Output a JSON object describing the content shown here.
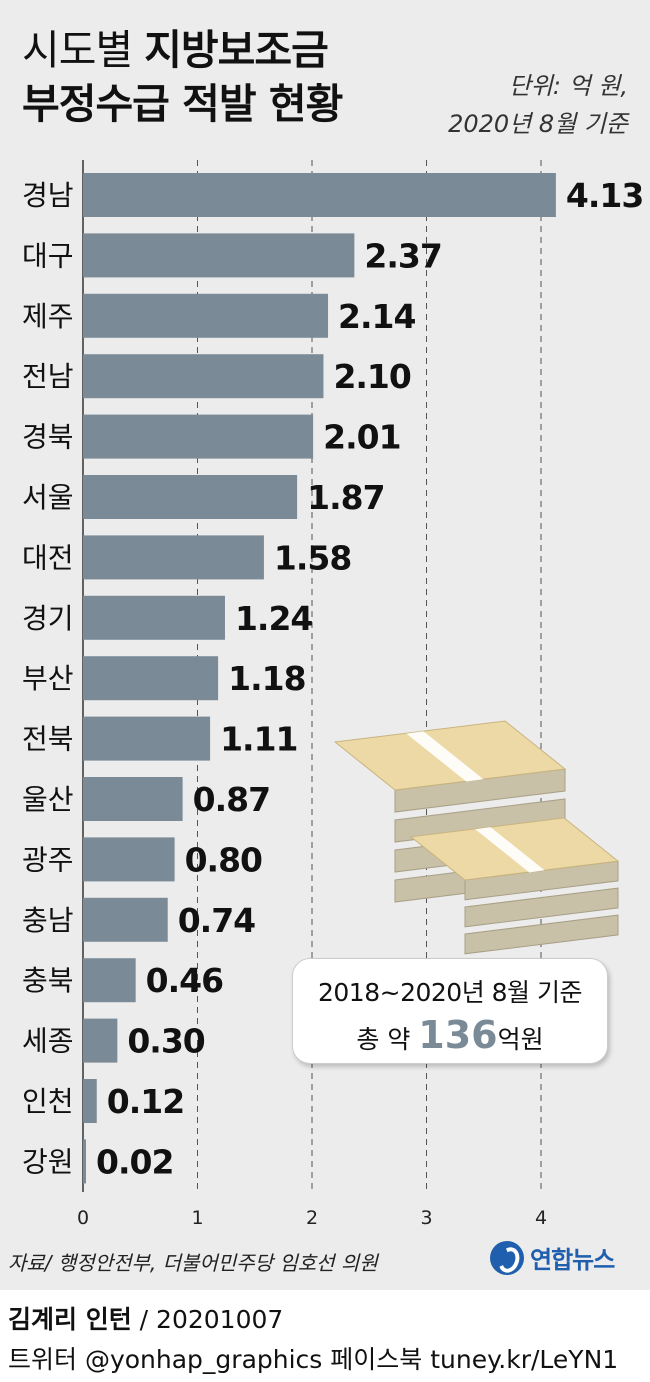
{
  "title": {
    "line1_light": "시도별 ",
    "line1_bold": "지방보조금",
    "line2_bold": "부정수급 적발 현황"
  },
  "unit": {
    "line1": "단위: 억 원,",
    "line2": "2020년 8월 기준"
  },
  "note": {
    "line1": "2018~2020년 8월 기준",
    "line2_pre": "총 약 ",
    "line2_value": "136",
    "line2_post": "억원"
  },
  "source": "자료/ 행정안전부, 더불어민주당 임호선 의원",
  "logo": "연합뉴스",
  "credit": {
    "name": "김계리 인턴",
    "date": " / 20201007",
    "social": "트위터 @yonhap_graphics  페이스북 tuney.kr/LeYN1"
  },
  "colors": {
    "bar": "#7b8a97",
    "background": "#ececec",
    "grid": "#555555"
  },
  "chart_data": {
    "type": "bar",
    "orientation": "horizontal",
    "categories": [
      "경남",
      "대구",
      "제주",
      "전남",
      "경북",
      "서울",
      "대전",
      "경기",
      "부산",
      "전북",
      "울산",
      "광주",
      "충남",
      "충북",
      "세종",
      "인천",
      "강원"
    ],
    "values": [
      4.13,
      2.37,
      2.14,
      2.1,
      2.01,
      1.87,
      1.58,
      1.24,
      1.18,
      1.11,
      0.87,
      0.8,
      0.74,
      0.46,
      0.3,
      0.12,
      0.02
    ],
    "value_labels": [
      "4.13",
      "2.37",
      "2.14",
      "2.10",
      "2.01",
      "1.87",
      "1.58",
      "1.24",
      "1.18",
      "1.11",
      "0.87",
      "0.80",
      "0.74",
      "0.46",
      "0.30",
      "0.12",
      "0.02"
    ],
    "xlim": [
      0,
      4.5
    ],
    "xticks": [
      0,
      1,
      2,
      3,
      4
    ],
    "xtick_labels": [
      "0",
      "1",
      "2",
      "3",
      "4"
    ],
    "grid": true,
    "grid_style": "dashed"
  }
}
